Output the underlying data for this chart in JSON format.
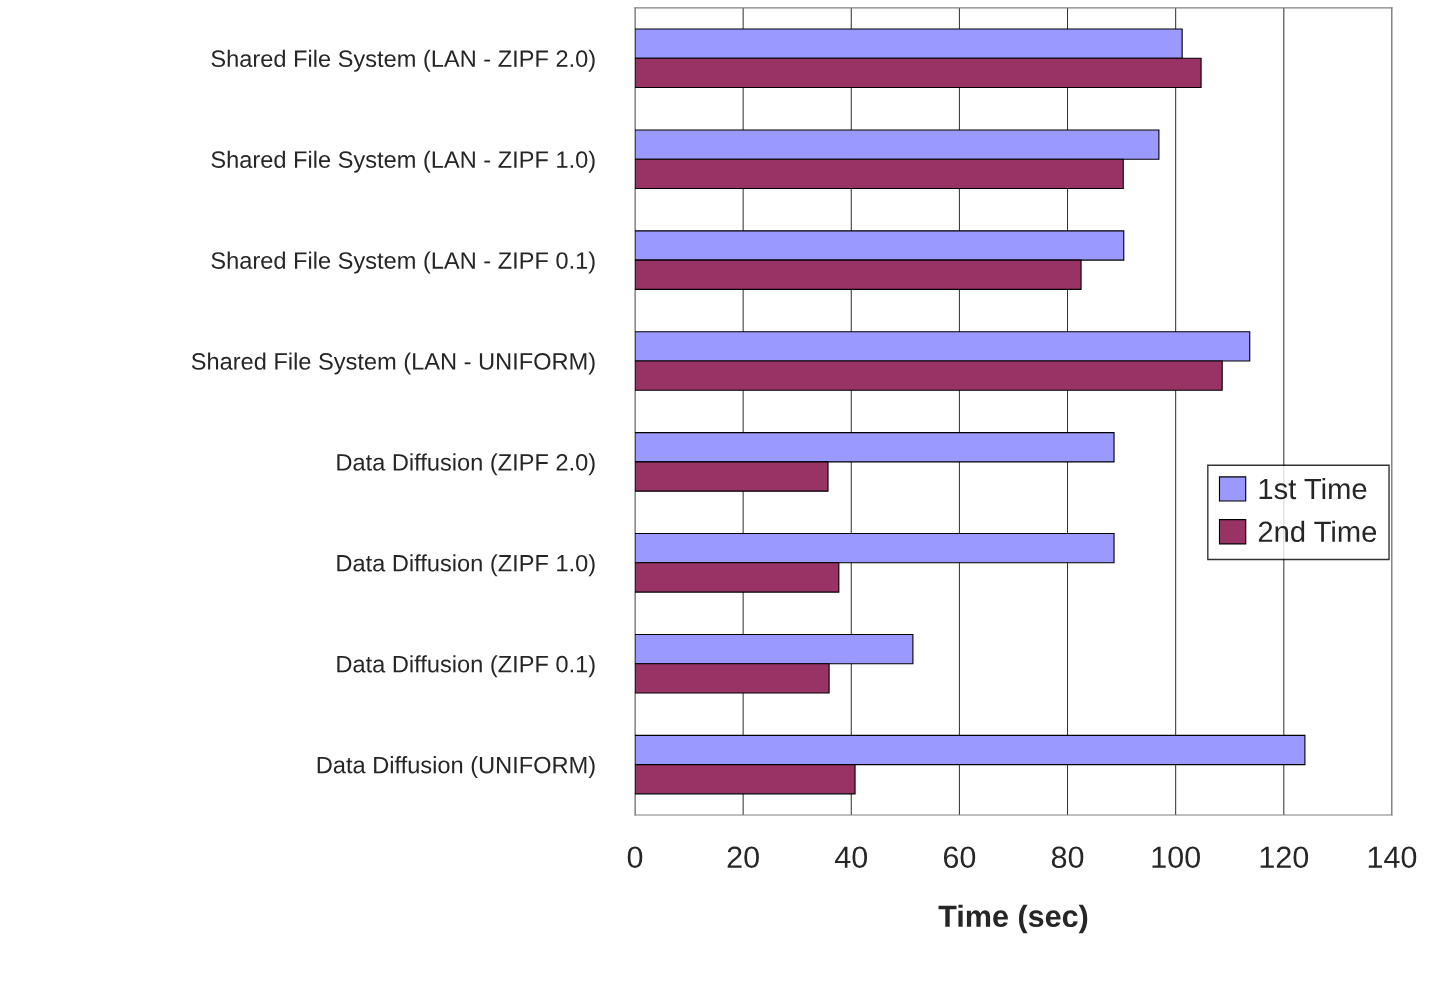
{
  "chart_data": {
    "type": "bar",
    "orientation": "horizontal",
    "xlabel": "Time (sec)",
    "categories": [
      "Shared File System (LAN - ZIPF 2.0)",
      "Shared File System (LAN - ZIPF 1.0)",
      "Shared File System (LAN - ZIPF 0.1)",
      "Shared File System (LAN - UNIFORM)",
      "Data Diffusion (ZIPF 2.0)",
      "Data Diffusion (ZIPF 1.0)",
      "Data Diffusion (ZIPF 0.1)",
      "Data Diffusion (UNIFORM)"
    ],
    "series": [
      {
        "name": "1st Time",
        "color": "#9999ff",
        "values": [
          101.2,
          96.9,
          90.4,
          113.7,
          88.6,
          88.6,
          51.4,
          123.9
        ]
      },
      {
        "name": "2nd Time",
        "color": "#993366",
        "values": [
          104.7,
          90.3,
          82.5,
          108.6,
          35.7,
          37.7,
          35.9,
          40.7
        ]
      }
    ],
    "xlim": [
      0,
      140
    ],
    "xticks": [
      0,
      20,
      40,
      60,
      80,
      100,
      120,
      140
    ],
    "grid": "x",
    "legend": "right"
  }
}
